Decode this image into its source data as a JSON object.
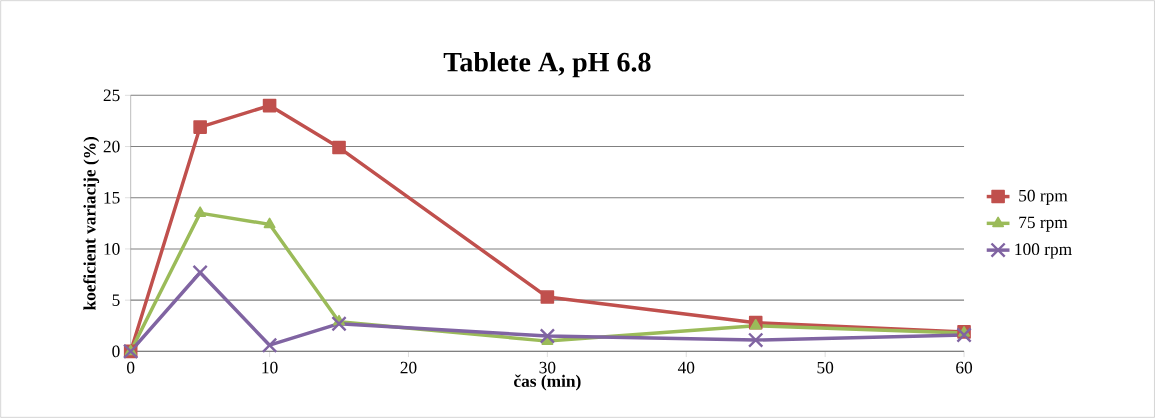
{
  "chart_data": {
    "type": "line",
    "title": "Tablete A, pH 6.8",
    "xlabel": "čas (min)",
    "ylabel": "koeficient variacije (%)",
    "x": [
      0,
      5,
      10,
      15,
      30,
      45,
      60
    ],
    "series": [
      {
        "name": "50 rpm",
        "color": "#c0504d",
        "marker": "square",
        "values": [
          0,
          21.9,
          24,
          19.9,
          5.3,
          2.8,
          1.9
        ]
      },
      {
        "name": "75 rpm",
        "color": "#9bbb59",
        "marker": "triangle",
        "values": [
          0,
          13.5,
          12.4,
          2.9,
          1.0,
          2.5,
          1.8
        ]
      },
      {
        "name": "100 rpm",
        "color": "#8064a2",
        "marker": "cross",
        "values": [
          0,
          7.7,
          0.6,
          2.7,
          1.5,
          1.1,
          1.6
        ]
      }
    ],
    "xlim": [
      0,
      60
    ],
    "xticks": [
      0,
      10,
      20,
      30,
      40,
      50,
      60
    ],
    "ylim": [
      0,
      25
    ],
    "yticks": [
      0,
      5,
      10,
      15,
      20,
      25
    ],
    "grid": "y",
    "legend": "right"
  }
}
